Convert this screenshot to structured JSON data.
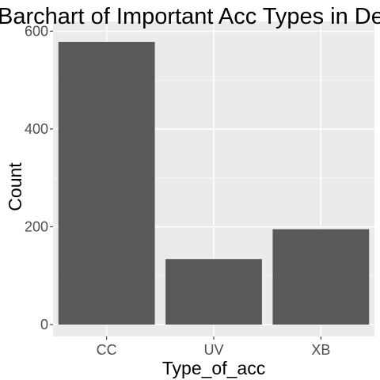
{
  "chart_data": {
    "type": "bar",
    "title": "Barchart of Important Acc Types in De",
    "xlabel": "Type_of_acc",
    "ylabel": "Count",
    "categories": [
      "CC",
      "UV",
      "XB"
    ],
    "values": [
      578,
      134,
      195
    ],
    "ylim": [
      0,
      620
    ],
    "yticks": [
      0,
      200,
      400,
      600
    ],
    "ytick_labels": [
      "0",
      "200",
      "400",
      "600"
    ],
    "grid": true,
    "legend": "none",
    "colors": {
      "bar": "#595959",
      "panel": "#ebebeb",
      "grid_major": "#ffffff",
      "grid_minor": "#f5f5f5",
      "tick_text": "#4d4d4d",
      "text": "#000000"
    }
  }
}
